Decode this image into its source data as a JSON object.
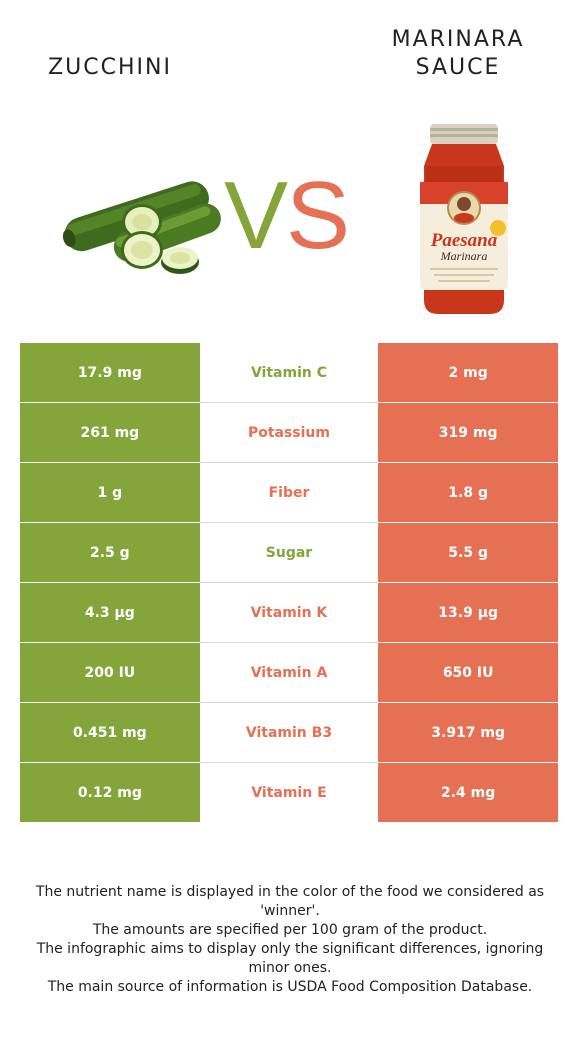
{
  "foods": {
    "left": "ZUCCHINI",
    "right_line1": "MARINARA",
    "right_line2": "SAUCE"
  },
  "colors": {
    "left": "#84a53a",
    "right": "#e57054"
  },
  "vs": {
    "v": "V",
    "s": "S"
  },
  "jar": {
    "brand": "Paesana",
    "product": "Marinara"
  },
  "rows": [
    {
      "nutrient": "Vitamin C",
      "left": "17.9 mg",
      "right": "2 mg",
      "winner": "left"
    },
    {
      "nutrient": "Potassium",
      "left": "261 mg",
      "right": "319 mg",
      "winner": "right"
    },
    {
      "nutrient": "Fiber",
      "left": "1 g",
      "right": "1.8 g",
      "winner": "right"
    },
    {
      "nutrient": "Sugar",
      "left": "2.5 g",
      "right": "5.5 g",
      "winner": "left"
    },
    {
      "nutrient": "Vitamin K",
      "left": "4.3 µg",
      "right": "13.9 µg",
      "winner": "right"
    },
    {
      "nutrient": "Vitamin A",
      "left": "200 IU",
      "right": "650 IU",
      "winner": "right"
    },
    {
      "nutrient": "Vitamin B3",
      "left": "0.451 mg",
      "right": "3.917 mg",
      "winner": "right"
    },
    {
      "nutrient": "Vitamin E",
      "left": "0.12 mg",
      "right": "2.4 mg",
      "winner": "right"
    }
  ],
  "footer": [
    "The nutrient name is displayed in the color of the food we considered as 'winner'.",
    "The amounts are specified per 100 gram of the product.",
    "The infographic aims to display only the significant differences, ignoring minor ones.",
    "The main source of information is USDA Food Composition Database."
  ]
}
